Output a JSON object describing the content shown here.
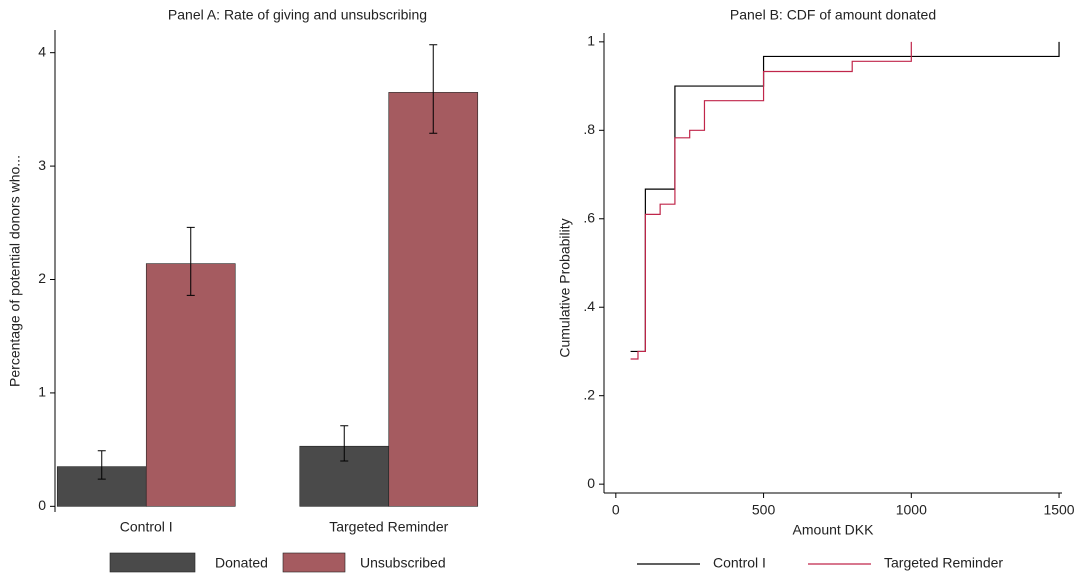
{
  "chart_data": [
    {
      "type": "bar",
      "title": "Panel A: Rate of giving and unsubscribing",
      "y_label": "Percentage of potential donors who...",
      "categories": [
        "Control I",
        "Targeted Reminder"
      ],
      "series": [
        {
          "name": "Donated",
          "color": "#4a4a4a",
          "values": [
            0.35,
            0.53
          ],
          "ci_low": [
            0.24,
            0.4
          ],
          "ci_high": [
            0.49,
            0.71
          ]
        },
        {
          "name": "Unsubscribed",
          "color": "#a55b60",
          "values": [
            2.14,
            3.65
          ],
          "ci_low": [
            1.86,
            3.29
          ],
          "ci_high": [
            2.46,
            4.07
          ]
        }
      ],
      "ylim": [
        -0.05,
        4.2
      ],
      "yticks": [
        0,
        1,
        2,
        3,
        4
      ],
      "legend": "bottom"
    },
    {
      "type": "step",
      "title": "Panel B: CDF of amount donated",
      "x_label": "Amount DKK",
      "y_label": "Cumulative Probability",
      "series": [
        {
          "name": "Control I",
          "color": "#000000",
          "x": [
            50,
            100,
            200,
            500,
            1500
          ],
          "values": [
            0.3,
            0.667,
            0.9,
            0.967,
            1
          ]
        },
        {
          "name": "Targeted Reminder",
          "color": "#c0264a",
          "x": [
            50,
            75,
            100,
            150,
            200,
            250,
            300,
            500,
            800,
            1000
          ],
          "values": [
            0.283,
            0.3,
            0.61,
            0.633,
            0.783,
            0.8,
            0.867,
            0.933,
            0.956,
            1
          ]
        }
      ],
      "xlim": [
        -40,
        1510
      ],
      "xticks": [
        0,
        500,
        1000,
        1500
      ],
      "ylim": [
        -0.02,
        1.02
      ],
      "yticks": [
        0,
        {
          "value": 0.2,
          "label": ".2"
        },
        {
          "value": 0.4,
          "label": ".4"
        },
        {
          "value": 0.6,
          "label": ".6"
        },
        {
          "value": 0.8,
          "label": ".8"
        },
        1
      ],
      "legend": "bottom"
    }
  ]
}
